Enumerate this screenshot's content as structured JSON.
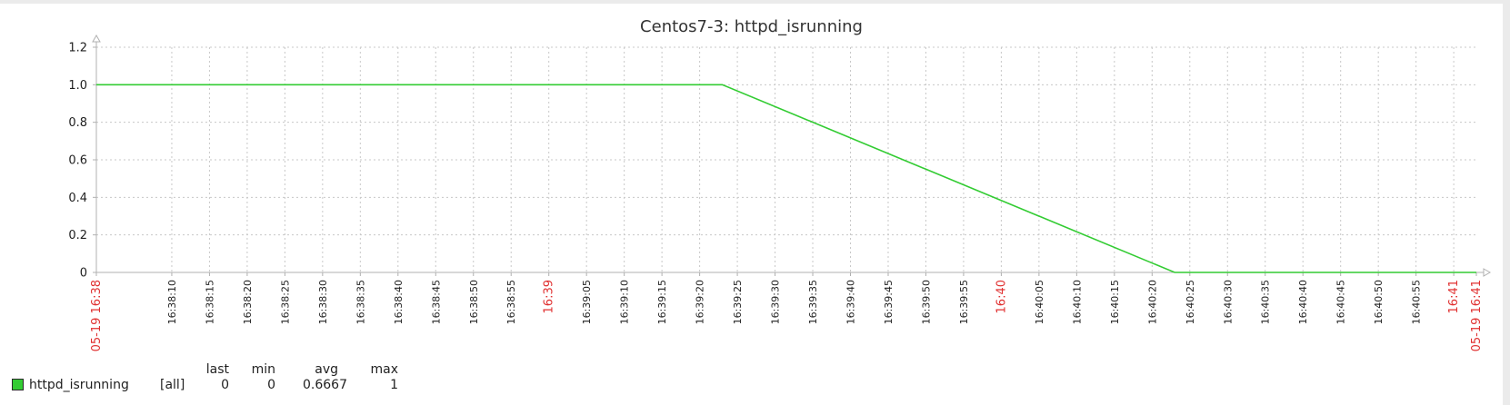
{
  "chart_data": {
    "type": "line",
    "title": "Centos7-3: httpd_isrunning",
    "xlabel": "",
    "ylabel": "",
    "ylim": [
      0,
      1.2
    ],
    "xlim": [
      "16:38:00",
      "16:41:00"
    ],
    "y_ticks": [
      "1.2",
      "1.0",
      "0.8",
      "0.6",
      "0.4",
      "0.2",
      "0"
    ],
    "x_ticks": [
      {
        "label": "05-19 16:38",
        "t": 0,
        "highlight": true
      },
      {
        "label": "16:38:10",
        "t": 10
      },
      {
        "label": "16:38:15",
        "t": 15
      },
      {
        "label": "16:38:20",
        "t": 20
      },
      {
        "label": "16:38:25",
        "t": 25
      },
      {
        "label": "16:38:30",
        "t": 30
      },
      {
        "label": "16:38:35",
        "t": 35
      },
      {
        "label": "16:38:40",
        "t": 40
      },
      {
        "label": "16:38:45",
        "t": 45
      },
      {
        "label": "16:38:50",
        "t": 50
      },
      {
        "label": "16:38:55",
        "t": 55
      },
      {
        "label": "16:39",
        "t": 60,
        "highlight": true
      },
      {
        "label": "16:39:05",
        "t": 65
      },
      {
        "label": "16:39:10",
        "t": 70
      },
      {
        "label": "16:39:15",
        "t": 75
      },
      {
        "label": "16:39:20",
        "t": 80
      },
      {
        "label": "16:39:25",
        "t": 85
      },
      {
        "label": "16:39:30",
        "t": 90
      },
      {
        "label": "16:39:35",
        "t": 95
      },
      {
        "label": "16:39:40",
        "t": 100
      },
      {
        "label": "16:39:45",
        "t": 105
      },
      {
        "label": "16:39:50",
        "t": 110
      },
      {
        "label": "16:39:55",
        "t": 115
      },
      {
        "label": "16:40",
        "t": 120,
        "highlight": true
      },
      {
        "label": "16:40:05",
        "t": 125
      },
      {
        "label": "16:40:10",
        "t": 130
      },
      {
        "label": "16:40:15",
        "t": 135
      },
      {
        "label": "16:40:20",
        "t": 140
      },
      {
        "label": "16:40:25",
        "t": 145
      },
      {
        "label": "16:40:30",
        "t": 150
      },
      {
        "label": "16:40:35",
        "t": 155
      },
      {
        "label": "16:40:40",
        "t": 160
      },
      {
        "label": "16:40:45",
        "t": 165
      },
      {
        "label": "16:40:50",
        "t": 170
      },
      {
        "label": "16:40:55",
        "t": 175
      },
      {
        "label": "16:41",
        "t": 180,
        "highlight": true
      },
      {
        "label": "05-19 16:41",
        "t": 183,
        "highlight": true
      }
    ],
    "series": [
      {
        "name": "httpd_isrunning",
        "color": "#33cc33",
        "points": [
          {
            "x": "16:38:00",
            "y": 1
          },
          {
            "x": "16:39:23",
            "y": 1
          },
          {
            "x": "16:40:23",
            "y": 0
          },
          {
            "x": "16:41:03",
            "y": 0
          }
        ]
      }
    ],
    "grid": true,
    "legend": {
      "position": "bottom-left",
      "headers": [
        "last",
        "min",
        "avg",
        "max"
      ],
      "rows": [
        {
          "name": "httpd_isrunning",
          "function": "[all]",
          "last": "0",
          "min": "0",
          "avg": "0.6667",
          "max": "1",
          "color": "#33cc33"
        }
      ]
    },
    "colors": {
      "line": "#33cc33",
      "highlight_label": "#e03030",
      "grid": "#c8c8c8",
      "axis": "#b0b0b0"
    }
  }
}
